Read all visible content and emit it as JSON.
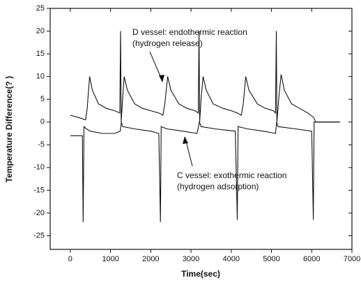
{
  "chart_data": {
    "type": "line",
    "xlabel": "Time(sec)",
    "ylabel": "Temperature Difference(? )",
    "xlim": [
      -500,
      7000
    ],
    "xticks": [
      0,
      1000,
      2000,
      3000,
      4000,
      5000,
      6000,
      7000
    ],
    "ylim": [
      -28,
      25
    ],
    "yticks": [
      -25,
      -20,
      -15,
      -10,
      -5,
      0,
      5,
      10,
      15,
      20,
      25
    ],
    "annotations": [
      [
        "D vessel: endothermic reaction",
        "(hydrogen release)"
      ],
      [
        "C vessel: exothermic reaction",
        "(hydrogen adsorption)"
      ]
    ],
    "series": [
      {
        "color": "#111111",
        "x": [
          0,
          200,
          380,
          420,
          480,
          550,
          700,
          900,
          1100,
          1230,
          1250,
          1265,
          1300,
          1340,
          1420,
          1600,
          1800,
          2000,
          2200,
          2300,
          2350,
          2420,
          2500,
          2700,
          2900,
          3100,
          3180,
          3200,
          3215,
          3250,
          3300,
          3380,
          3550,
          3800,
          4000,
          4150,
          4250,
          4300,
          4360,
          4440,
          4650,
          4850,
          5050,
          5100,
          5120,
          5135,
          5180,
          5240,
          5320,
          5500,
          5700,
          5900,
          6050,
          6100,
          6700
        ],
        "values": [
          1.5,
          1,
          0.5,
          3,
          10,
          7,
          4,
          3,
          2.5,
          2,
          20,
          0,
          5,
          10,
          7,
          4,
          3,
          2.5,
          2,
          1.5,
          4,
          10,
          7,
          4,
          3,
          2.5,
          2,
          20,
          0,
          5,
          10,
          7,
          4,
          3,
          2.5,
          2,
          1.5,
          4,
          10,
          7,
          4,
          3,
          2.5,
          2,
          20,
          0,
          5,
          10.5,
          7,
          4,
          3,
          2,
          1,
          0,
          0
        ]
      },
      {
        "color": "#111111",
        "x": [
          0,
          300,
          320,
          340,
          400,
          500,
          800,
          1100,
          1240,
          1270,
          1300,
          1600,
          2000,
          2200,
          2240,
          2260,
          2400,
          2800,
          3150,
          3210,
          3250,
          3600,
          4100,
          4150,
          4170,
          4400,
          4800,
          5100,
          5130,
          5160,
          5600,
          6000,
          6040,
          6060,
          6700
        ],
        "values": [
          -3,
          -3,
          -22,
          -1,
          -1.5,
          -2,
          -2.5,
          -2.5,
          -2,
          0,
          -1,
          -1.5,
          -2,
          -2.5,
          -22,
          -1,
          -1.5,
          -2,
          -2.5,
          0,
          -1,
          -1.5,
          -2,
          -21.5,
          -1,
          -1.5,
          -2,
          -2.5,
          0,
          -1,
          -1.5,
          -2,
          -21.5,
          0,
          0
        ]
      }
    ]
  }
}
